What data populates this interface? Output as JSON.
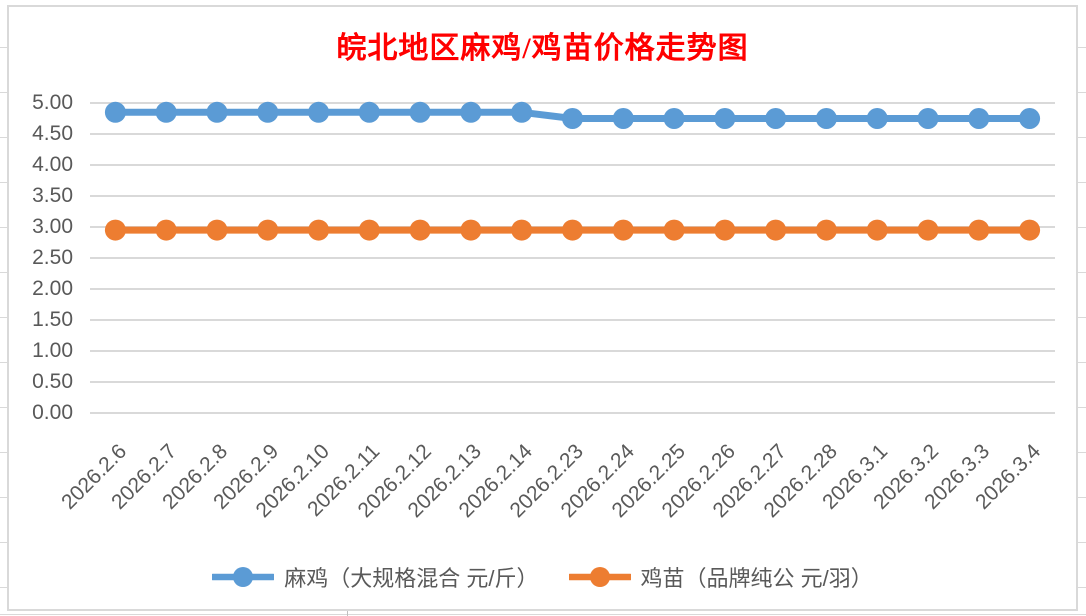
{
  "title": "皖北地区麻鸡/鸡苗价格走势图",
  "chart_data": {
    "type": "line",
    "title": "皖北地区麻鸡/鸡苗价格走势图",
    "categories": [
      "2026.2.6",
      "2026.2.7",
      "2026.2.8",
      "2026.2.9",
      "2026.2.10",
      "2026.2.11",
      "2026.2.12",
      "2026.2.13",
      "2026.2.14",
      "2026.2.23",
      "2026.2.24",
      "2026.2.25",
      "2026.2.26",
      "2026.2.27",
      "2026.2.28",
      "2026.3.1",
      "2026.3.2",
      "2026.3.3",
      "2026.3.4"
    ],
    "series": [
      {
        "name": "麻鸡（大规格混合 元/斤）",
        "color": "#5B9BD5",
        "values": [
          4.85,
          4.85,
          4.85,
          4.85,
          4.85,
          4.85,
          4.85,
          4.85,
          4.85,
          4.75,
          4.75,
          4.75,
          4.75,
          4.75,
          4.75,
          4.75,
          4.75,
          4.75,
          4.75
        ]
      },
      {
        "name": "鸡苗（品牌纯公 元/羽）",
        "color": "#ED7D31",
        "values": [
          2.95,
          2.95,
          2.95,
          2.95,
          2.95,
          2.95,
          2.95,
          2.95,
          2.95,
          2.95,
          2.95,
          2.95,
          2.95,
          2.95,
          2.95,
          2.95,
          2.95,
          2.95,
          2.95
        ]
      }
    ],
    "ylim": [
      0,
      5
    ],
    "ytick_step": 0.5,
    "ytick_labels_top_to_bottom": [
      "5.00",
      "4.50",
      "4.00",
      "3.50",
      "3.00",
      "2.50",
      "2.00",
      "1.50",
      "1.00",
      "0.50",
      "0.00"
    ],
    "grid": true,
    "legend_position": "bottom",
    "marker": "circle"
  },
  "style": {
    "title_color": "#FF0000",
    "axis_text_color": "#595959",
    "gridline_color": "#D9D9D9",
    "chart_border_color": "#D9D9D9",
    "sheet_line_color": "#D9D9D9",
    "series_blue": "#5B9BD5",
    "series_orange": "#ED7D31",
    "background": "#FFFFFF"
  }
}
